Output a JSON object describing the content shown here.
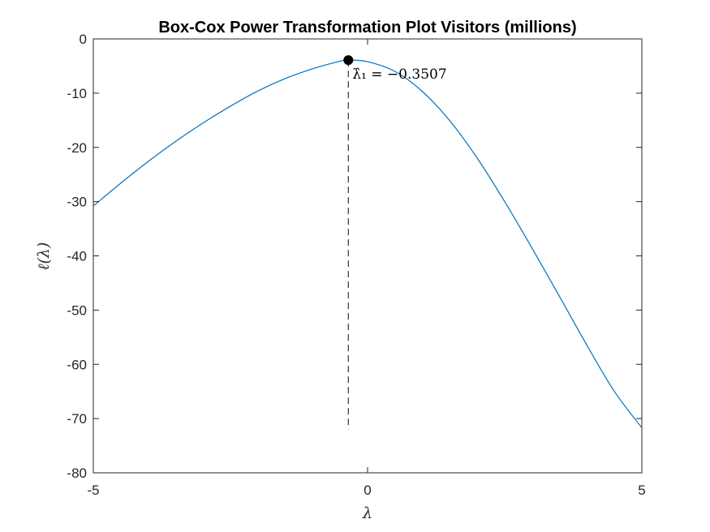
{
  "chart_data": {
    "type": "line",
    "title": "Box-Cox Power Transformation Plot Visitors (millions)",
    "xlabel": "λ",
    "ylabel": "ℓ(λ)",
    "xlim": [
      -5,
      5
    ],
    "ylim": [
      -80,
      0
    ],
    "xticks": [
      -5,
      0,
      5
    ],
    "yticks": [
      0,
      -10,
      -20,
      -30,
      -40,
      -50,
      -60,
      -70,
      -80
    ],
    "ytick_labels": [
      "0",
      "-10",
      "-20",
      "-30",
      "-40",
      "-50",
      "-60",
      "-70",
      "-80"
    ],
    "xtick_labels": [
      "-5",
      "0",
      "5"
    ],
    "grid": false,
    "series": [
      {
        "color": "#0072BD",
        "x": [
          -5,
          -4.5,
          -4,
          -3.5,
          -3,
          -2.5,
          -2,
          -1.5,
          -1,
          -0.5,
          -0.3507,
          0,
          0.5,
          1,
          1.5,
          2,
          2.5,
          3,
          3.5,
          4,
          4.5,
          5
        ],
        "y": [
          -30.8,
          -26.6,
          -22.6,
          -18.9,
          -15.5,
          -12.4,
          -9.6,
          -7.3,
          -5.5,
          -4.1,
          -3.9,
          -4.2,
          -6.0,
          -9.7,
          -15.1,
          -22.0,
          -30.0,
          -38.6,
          -47.5,
          -56.5,
          -65.0,
          -71.7
        ]
      }
    ],
    "optimum": {
      "x": -0.3507,
      "y": -3.9,
      "label": "λ̂₁ = −0.3507",
      "marker_color": "#000000",
      "dashed_line_to_y": -72
    }
  }
}
